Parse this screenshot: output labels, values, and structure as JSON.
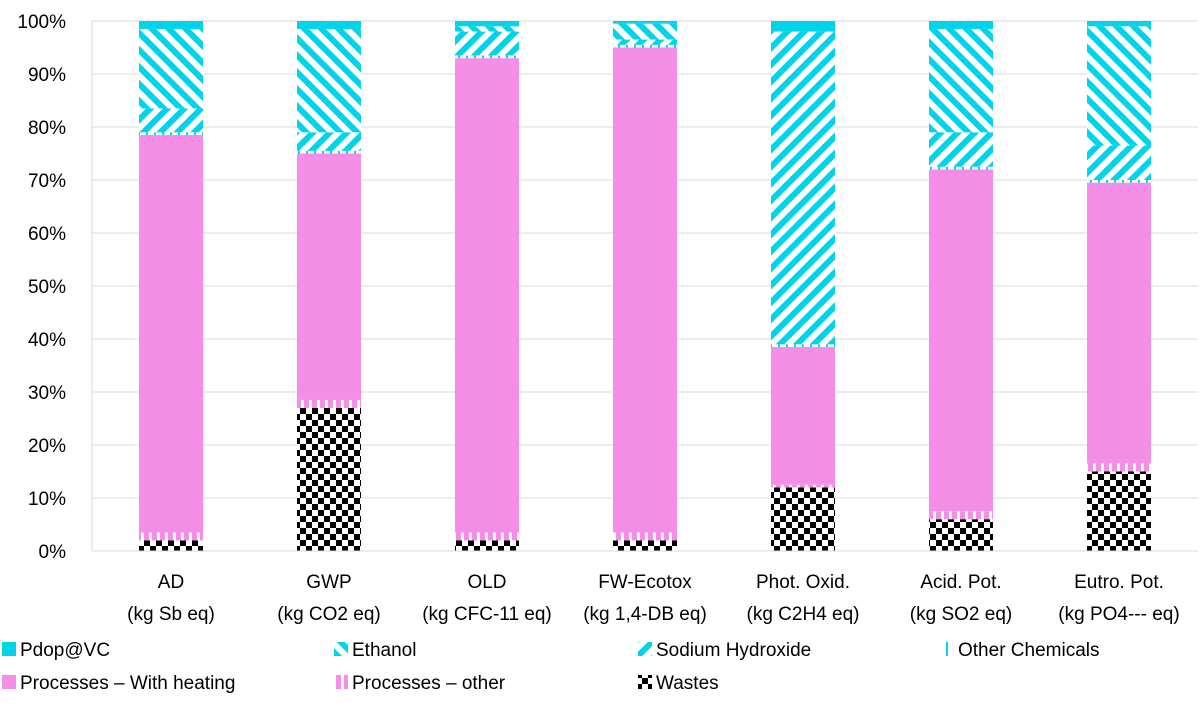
{
  "chart_data": {
    "type": "bar",
    "stacked": true,
    "normalized_percent": true,
    "ylim": [
      0,
      100
    ],
    "y_ticks": [
      "0%",
      "10%",
      "20%",
      "30%",
      "40%",
      "50%",
      "60%",
      "70%",
      "80%",
      "90%",
      "100%"
    ],
    "grid": "horizontal",
    "legend_position": "bottom",
    "categories": [
      [
        "AD",
        "(kg Sb eq)"
      ],
      [
        "GWP",
        "(kg CO2 eq)"
      ],
      [
        "OLD",
        "(kg CFC-11 eq)"
      ],
      [
        "FW-Ecotox",
        "(kg 1,4-DB eq)"
      ],
      [
        "Phot. Oxid.",
        "(kg C2H4 eq)"
      ],
      [
        "Acid. Pot.",
        "(kg SO2 eq)"
      ],
      [
        "Eutro. Pot.",
        "(kg PO4--- eq)"
      ]
    ],
    "series": [
      {
        "name": "Wastes",
        "values": [
          2,
          27,
          2,
          2,
          12,
          6,
          15
        ],
        "color": "#000000",
        "pattern": "checker"
      },
      {
        "name": "Processes – other",
        "values": [
          1.5,
          1.5,
          1.5,
          1.5,
          0.5,
          1.5,
          1.5
        ],
        "color": "#f58ee6",
        "pattern": "vertical-stripes"
      },
      {
        "name": "Processes – With heating",
        "values": [
          75,
          46.5,
          89.5,
          91.5,
          26,
          64.5,
          53
        ],
        "color": "#f58ee6",
        "pattern": "solid"
      },
      {
        "name": "Other Chemicals",
        "values": [
          0.5,
          0.5,
          0.5,
          0.5,
          0.5,
          0.5,
          0.5
        ],
        "color": "#00d4ea",
        "pattern": "light-vertical"
      },
      {
        "name": "Sodium Hydroxide",
        "values": [
          4.5,
          3.5,
          4.5,
          1,
          59,
          6.5,
          6.5
        ],
        "color": "#00d4ea",
        "pattern": "diagonal-down"
      },
      {
        "name": "Ethanol",
        "values": [
          15,
          19.5,
          1,
          3,
          0,
          19.5,
          22.5
        ],
        "color": "#00d4ea",
        "pattern": "diagonal-up"
      },
      {
        "name": "Pdop@VC",
        "values": [
          1.5,
          1.5,
          1,
          0.5,
          2,
          1.5,
          1
        ],
        "color": "#00d4ea",
        "pattern": "solid"
      }
    ],
    "legend_order": [
      "Pdop@VC",
      "Ethanol",
      "Sodium Hydroxide",
      "Other Chemicals",
      "Processes – With heating",
      "Processes – other",
      "Wastes"
    ]
  }
}
